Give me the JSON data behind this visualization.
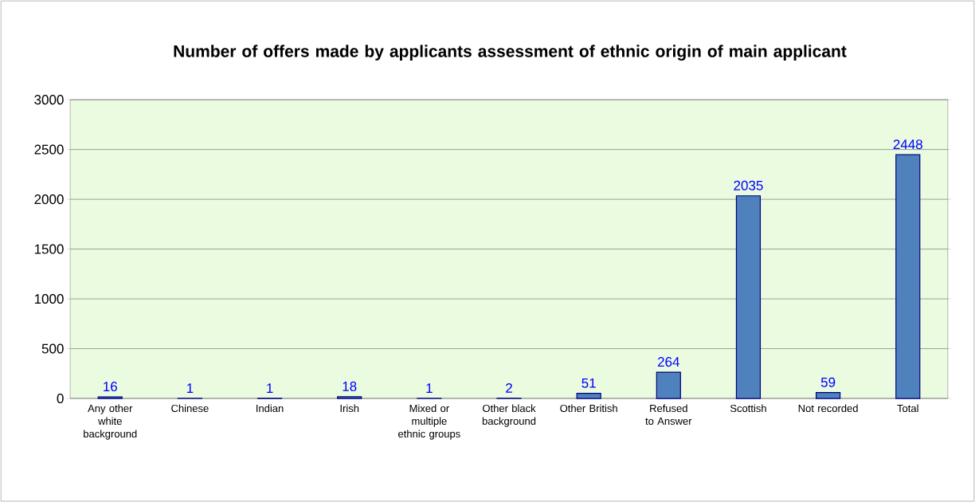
{
  "chart_data": {
    "type": "bar",
    "title": "Number of offers made by applicants assessment of ethnic origin of main applicant",
    "categories": [
      "Any other white background",
      "Chinese",
      "Indian",
      "Irish",
      "Mixed or multiple ethnic groups",
      "Other black background",
      "Other British",
      "Refused to Answer",
      "Scottish",
      "Not recorded",
      "Total"
    ],
    "values": [
      16,
      1,
      1,
      18,
      1,
      2,
      51,
      264,
      2035,
      59,
      2448
    ],
    "color": "#4f81bd",
    "ylim": [
      0,
      3000
    ],
    "yticks": [
      0,
      500,
      1000,
      1500,
      2000,
      2500,
      3000
    ],
    "grid": "y",
    "data_labels": true
  }
}
